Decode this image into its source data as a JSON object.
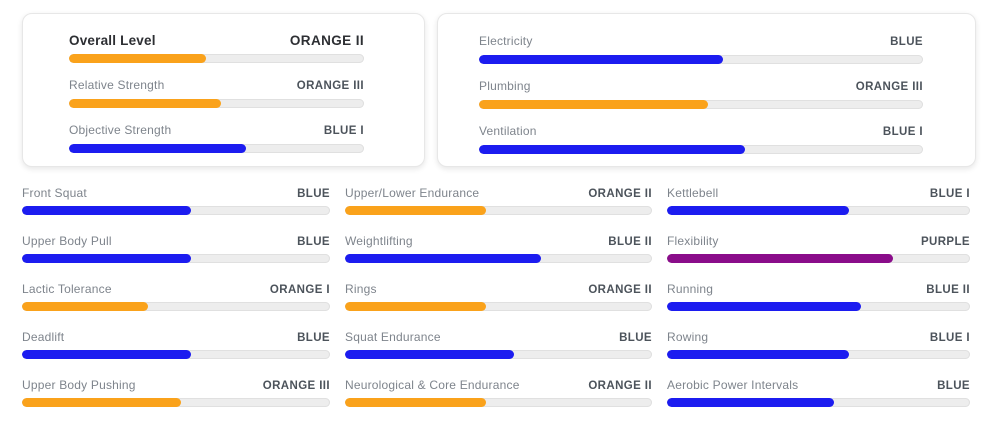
{
  "palette": {
    "orange": "#FAA21B",
    "blue": "#1C1CF0",
    "purple": "#8A0D8A",
    "track": "#EDEDED"
  },
  "summary_cards": [
    {
      "rows": [
        {
          "label": "Overall Level",
          "value": "ORANGE II",
          "percent": 46.5,
          "color": "#FAA21B"
        },
        {
          "label": "Relative Strength",
          "value": "ORANGE III",
          "percent": 51.5,
          "color": "#FAA21B"
        },
        {
          "label": "Objective Strength",
          "value": "BLUE I",
          "percent": 60,
          "color": "#1C1CF0"
        }
      ]
    },
    {
      "rows": [
        {
          "label": "Electricity",
          "value": "BLUE",
          "percent": 55,
          "color": "#1C1CF0"
        },
        {
          "label": "Plumbing",
          "value": "ORANGE III",
          "percent": 51.5,
          "color": "#FAA21B"
        },
        {
          "label": "Ventilation",
          "value": "BLUE I",
          "percent": 60,
          "color": "#1C1CF0"
        }
      ]
    }
  ],
  "grid": {
    "columns": [
      {
        "rows": [
          {
            "label": "Front Squat",
            "value": "BLUE",
            "percent": 55,
            "color": "#1C1CF0"
          },
          {
            "label": "Upper Body Pull",
            "value": "BLUE",
            "percent": 55,
            "color": "#1C1CF0"
          },
          {
            "label": "Lactic Tolerance",
            "value": "ORANGE I",
            "percent": 41,
            "color": "#FAA21B"
          },
          {
            "label": "Deadlift",
            "value": "BLUE",
            "percent": 55,
            "color": "#1C1CF0"
          },
          {
            "label": "Upper Body Pushing",
            "value": "ORANGE III",
            "percent": 51.5,
            "color": "#FAA21B"
          }
        ]
      },
      {
        "rows": [
          {
            "label": "Upper/Lower Endurance",
            "value": "ORANGE II",
            "percent": 46,
            "color": "#FAA21B"
          },
          {
            "label": "Weightlifting",
            "value": "BLUE II",
            "percent": 64,
            "color": "#1C1CF0"
          },
          {
            "label": "Rings",
            "value": "ORANGE II",
            "percent": 46,
            "color": "#FAA21B"
          },
          {
            "label": "Squat Endurance",
            "value": "BLUE",
            "percent": 55,
            "color": "#1C1CF0"
          },
          {
            "label": "Neurological & Core Endurance",
            "value": "ORANGE II",
            "percent": 46,
            "color": "#FAA21B"
          }
        ]
      },
      {
        "rows": [
          {
            "label": "Kettlebell",
            "value": "BLUE I",
            "percent": 60,
            "color": "#1C1CF0"
          },
          {
            "label": "Flexibility",
            "value": "PURPLE",
            "percent": 74.5,
            "color": "#8A0D8A"
          },
          {
            "label": "Running",
            "value": "BLUE II",
            "percent": 64,
            "color": "#1C1CF0"
          },
          {
            "label": "Rowing",
            "value": "BLUE I",
            "percent": 60,
            "color": "#1C1CF0"
          },
          {
            "label": "Aerobic Power Intervals",
            "value": "BLUE",
            "percent": 55,
            "color": "#1C1CF0"
          }
        ]
      }
    ]
  }
}
